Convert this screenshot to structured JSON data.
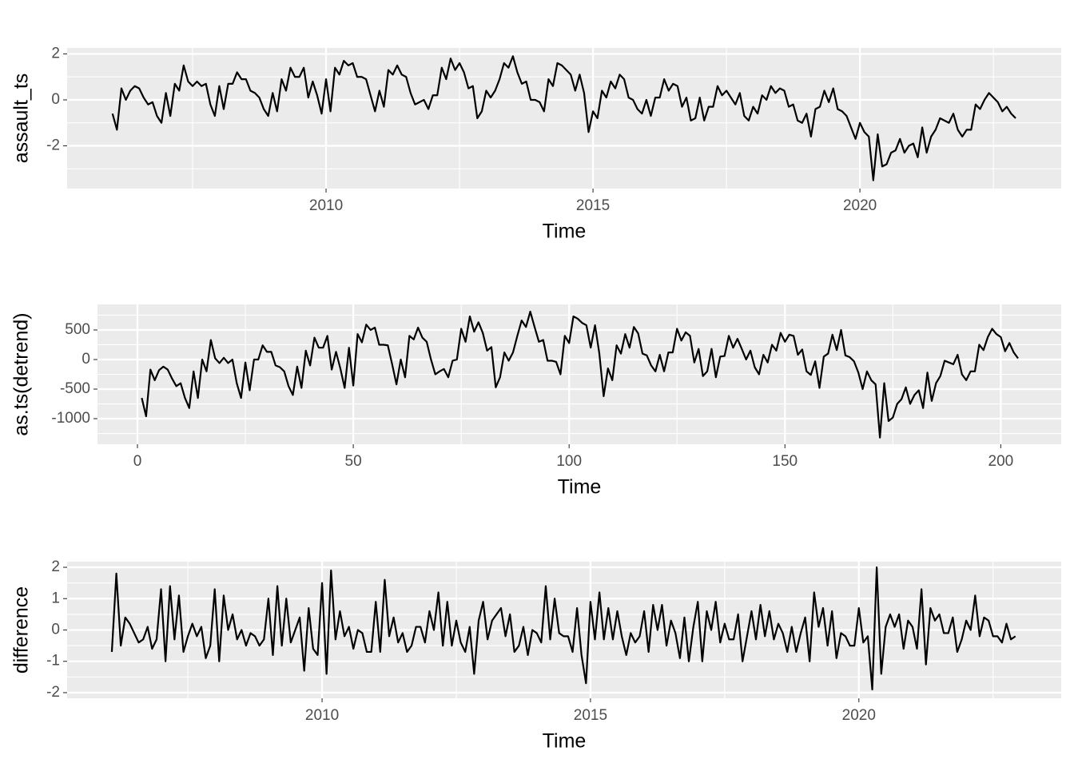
{
  "chart_data": [
    {
      "type": "line",
      "x_label": "Time",
      "y_label": "assault_ts",
      "color": "#000000",
      "grid": true,
      "xlim": [
        2005.15,
        2023.77
      ],
      "ylim": [
        -3.86,
        2.26
      ],
      "xticks": [
        2010,
        2015,
        2020
      ],
      "yticks": [
        -2,
        0,
        2
      ],
      "x": [
        2006,
        2006.083,
        2006.167,
        2006.25,
        2006.333,
        2006.417,
        2006.5,
        2006.583,
        2006.667,
        2006.75,
        2006.833,
        2006.917,
        2007,
        2007.083,
        2007.167,
        2007.25,
        2007.333,
        2007.417,
        2007.5,
        2007.583,
        2007.667,
        2007.75,
        2007.833,
        2007.917,
        2008,
        2008.083,
        2008.167,
        2008.25,
        2008.333,
        2008.417,
        2008.5,
        2008.583,
        2008.667,
        2008.75,
        2008.833,
        2008.917,
        2009,
        2009.083,
        2009.167,
        2009.25,
        2009.333,
        2009.417,
        2009.5,
        2009.583,
        2009.667,
        2009.75,
        2009.833,
        2009.917,
        2010,
        2010.083,
        2010.167,
        2010.25,
        2010.333,
        2010.417,
        2010.5,
        2010.583,
        2010.667,
        2010.75,
        2010.833,
        2010.917,
        2011,
        2011.083,
        2011.167,
        2011.25,
        2011.333,
        2011.417,
        2011.5,
        2011.583,
        2011.667,
        2011.75,
        2011.833,
        2011.917,
        2012,
        2012.083,
        2012.167,
        2012.25,
        2012.333,
        2012.417,
        2012.5,
        2012.583,
        2012.667,
        2012.75,
        2012.833,
        2012.917,
        2013,
        2013.083,
        2013.167,
        2013.25,
        2013.333,
        2013.417,
        2013.5,
        2013.583,
        2013.667,
        2013.75,
        2013.833,
        2013.917,
        2014,
        2014.083,
        2014.167,
        2014.25,
        2014.333,
        2014.417,
        2014.5,
        2014.583,
        2014.667,
        2014.75,
        2014.833,
        2014.917,
        2015,
        2015.083,
        2015.167,
        2015.25,
        2015.333,
        2015.417,
        2015.5,
        2015.583,
        2015.667,
        2015.75,
        2015.833,
        2015.917,
        2016,
        2016.083,
        2016.167,
        2016.25,
        2016.333,
        2016.417,
        2016.5,
        2016.583,
        2016.667,
        2016.75,
        2016.833,
        2016.917,
        2017,
        2017.083,
        2017.167,
        2017.25,
        2017.333,
        2017.417,
        2017.5,
        2017.583,
        2017.667,
        2017.75,
        2017.833,
        2017.917,
        2018,
        2018.083,
        2018.167,
        2018.25,
        2018.333,
        2018.417,
        2018.5,
        2018.583,
        2018.667,
        2018.75,
        2018.833,
        2018.917,
        2019,
        2019.083,
        2019.167,
        2019.25,
        2019.333,
        2019.417,
        2019.5,
        2019.583,
        2019.667,
        2019.75,
        2019.833,
        2019.917,
        2020,
        2020.083,
        2020.167,
        2020.25,
        2020.333,
        2020.417,
        2020.5,
        2020.583,
        2020.667,
        2020.75,
        2020.833,
        2020.917,
        2021,
        2021.083,
        2021.167,
        2021.25,
        2021.333,
        2021.417,
        2021.5,
        2021.583,
        2021.667,
        2021.75,
        2021.833,
        2021.917,
        2022,
        2022.083,
        2022.167,
        2022.25,
        2022.333,
        2022.417,
        2022.5,
        2022.583,
        2022.667,
        2022.75,
        2022.833,
        2022.917
      ],
      "values": [
        -0.6,
        -1.3,
        0.5,
        0.0,
        0.4,
        0.6,
        0.5,
        0.1,
        -0.2,
        -0.1,
        -0.7,
        -1.0,
        0.3,
        -0.7,
        0.7,
        0.4,
        1.5,
        0.8,
        0.6,
        0.8,
        0.6,
        0.7,
        -0.2,
        -0.7,
        0.6,
        -0.4,
        0.7,
        0.7,
        1.2,
        0.9,
        0.9,
        0.4,
        0.3,
        0.1,
        -0.4,
        -0.7,
        0.3,
        -0.5,
        0.9,
        0.4,
        1.4,
        1.0,
        1.0,
        1.4,
        0.1,
        0.8,
        0.2,
        -0.6,
        0.9,
        -0.5,
        1.4,
        1.1,
        1.7,
        1.5,
        1.6,
        1.0,
        1.0,
        0.9,
        0.2,
        -0.5,
        0.4,
        -0.3,
        1.3,
        1.1,
        1.5,
        1.1,
        1.0,
        0.3,
        -0.2,
        -0.1,
        0.0,
        -0.4,
        0.2,
        0.2,
        1.4,
        0.9,
        1.8,
        1.3,
        1.6,
        1.2,
        0.5,
        0.6,
        -0.8,
        -0.5,
        0.4,
        0.1,
        0.4,
        0.9,
        1.6,
        1.4,
        1.9,
        1.2,
        0.7,
        0.8,
        0.0,
        0.0,
        -0.1,
        -0.5,
        0.9,
        0.6,
        1.6,
        1.5,
        1.3,
        1.1,
        0.4,
        1.1,
        0.3,
        -1.4,
        -0.5,
        -0.8,
        0.4,
        0.1,
        0.8,
        0.5,
        1.1,
        0.9,
        0.1,
        0.0,
        -0.4,
        -0.6,
        0.0,
        -0.7,
        0.1,
        0.1,
        0.9,
        0.4,
        0.7,
        0.6,
        -0.3,
        0.1,
        -0.9,
        -0.8,
        0.1,
        -0.9,
        -0.3,
        -0.3,
        0.6,
        0.2,
        0.4,
        0.1,
        -0.2,
        0.3,
        -0.7,
        -0.9,
        -0.3,
        -0.6,
        0.2,
        0.0,
        0.6,
        0.3,
        0.5,
        0.4,
        -0.3,
        -0.2,
        -0.9,
        -1.0,
        -0.6,
        -1.6,
        -0.4,
        -0.3,
        0.4,
        -0.1,
        0.5,
        -0.4,
        -0.5,
        -0.7,
        -1.2,
        -1.7,
        -1.0,
        -1.4,
        -1.6,
        -3.5,
        -1.5,
        -2.9,
        -2.8,
        -2.3,
        -2.2,
        -1.7,
        -2.3,
        -2.0,
        -1.9,
        -2.5,
        -1.2,
        -2.3,
        -1.6,
        -1.3,
        -0.8,
        -0.9,
        -1.0,
        -0.6,
        -1.3,
        -1.6,
        -1.3,
        -1.3,
        -0.2,
        -0.4,
        0.0,
        0.3,
        0.1,
        -0.1,
        -0.5,
        -0.3,
        -0.6,
        -0.8
      ]
    },
    {
      "type": "line",
      "x_label": "Time",
      "y_label": "as.ts(detrend)",
      "color": "#000000",
      "grid": true,
      "xlim": [
        -9.26,
        214
      ],
      "ylim": [
        -1432,
        932
      ],
      "xticks": [
        0,
        50,
        100,
        150,
        200
      ],
      "yticks": [
        -1000,
        -500,
        0,
        500
      ],
      "x": [
        1,
        2,
        3,
        4,
        5,
        6,
        7,
        8,
        9,
        10,
        11,
        12,
        13,
        14,
        15,
        16,
        17,
        18,
        19,
        20,
        21,
        22,
        23,
        24,
        25,
        26,
        27,
        28,
        29,
        30,
        31,
        32,
        33,
        34,
        35,
        36,
        37,
        38,
        39,
        40,
        41,
        42,
        43,
        44,
        45,
        46,
        47,
        48,
        49,
        50,
        51,
        52,
        53,
        54,
        55,
        56,
        57,
        58,
        59,
        60,
        61,
        62,
        63,
        64,
        65,
        66,
        67,
        68,
        69,
        70,
        71,
        72,
        73,
        74,
        75,
        76,
        77,
        78,
        79,
        80,
        81,
        82,
        83,
        84,
        85,
        86,
        87,
        88,
        89,
        90,
        91,
        92,
        93,
        94,
        95,
        96,
        97,
        98,
        99,
        100,
        101,
        102,
        103,
        104,
        105,
        106,
        107,
        108,
        109,
        110,
        111,
        112,
        113,
        114,
        115,
        116,
        117,
        118,
        119,
        120,
        121,
        122,
        123,
        124,
        125,
        126,
        127,
        128,
        129,
        130,
        131,
        132,
        133,
        134,
        135,
        136,
        137,
        138,
        139,
        140,
        141,
        142,
        143,
        144,
        145,
        146,
        147,
        148,
        149,
        150,
        151,
        152,
        153,
        154,
        155,
        156,
        157,
        158,
        159,
        160,
        161,
        162,
        163,
        164,
        165,
        166,
        167,
        168,
        169,
        170,
        171,
        172,
        173,
        174,
        175,
        176,
        177,
        178,
        179,
        180,
        181,
        182,
        183,
        184,
        185,
        186,
        187,
        188,
        189,
        190,
        191,
        192,
        193,
        194,
        195,
        196,
        197,
        198,
        199,
        200,
        201,
        202,
        203,
        204
      ],
      "values": [
        -650,
        -960,
        -170,
        -350,
        -180,
        -120,
        -170,
        -320,
        -450,
        -400,
        -650,
        -820,
        -200,
        -650,
        0,
        -200,
        330,
        20,
        -60,
        30,
        -60,
        0,
        -400,
        -650,
        -50,
        -520,
        0,
        0,
        240,
        130,
        130,
        -100,
        -130,
        -200,
        -450,
        -600,
        -120,
        -480,
        150,
        -100,
        370,
        200,
        200,
        400,
        -170,
        130,
        -150,
        -480,
        200,
        -440,
        430,
        290,
        590,
        500,
        540,
        250,
        250,
        240,
        -80,
        -420,
        0,
        -300,
        400,
        340,
        540,
        370,
        300,
        0,
        -250,
        -200,
        -160,
        -300,
        -20,
        0,
        520,
        300,
        730,
        470,
        630,
        450,
        150,
        210,
        -470,
        -300,
        120,
        -20,
        120,
        400,
        660,
        550,
        810,
        550,
        300,
        330,
        -20,
        -20,
        -40,
        -250,
        400,
        280,
        730,
        690,
        620,
        580,
        200,
        580,
        100,
        -620,
        -150,
        -350,
        240,
        100,
        430,
        200,
        550,
        440,
        100,
        70,
        -100,
        -200,
        80,
        -200,
        120,
        120,
        520,
        320,
        460,
        400,
        -50,
        180,
        -280,
        -200,
        180,
        -300,
        50,
        60,
        400,
        200,
        350,
        180,
        0,
        150,
        -130,
        -250,
        80,
        -50,
        250,
        150,
        450,
        300,
        420,
        400,
        80,
        170,
        -200,
        -260,
        -30,
        -480,
        50,
        100,
        420,
        160,
        500,
        70,
        40,
        -30,
        -220,
        -500,
        -200,
        -350,
        -420,
        -1320,
        -400,
        -1040,
        -980,
        -750,
        -670,
        -470,
        -750,
        -600,
        -520,
        -820,
        -220,
        -700,
        -400,
        -280,
        -20,
        -50,
        -80,
        80,
        -250,
        -350,
        -200,
        -200,
        250,
        160,
        380,
        520,
        430,
        380,
        140,
        280,
        120,
        20
      ]
    },
    {
      "type": "line",
      "x_label": "Time",
      "y_label": "difference",
      "color": "#000000",
      "grid": true,
      "xlim": [
        2005.25,
        2023.77
      ],
      "ylim": [
        -2.18,
        2.18
      ],
      "xticks": [
        2010,
        2015,
        2020
      ],
      "yticks": [
        -2,
        -1,
        0,
        1,
        2
      ],
      "x": [
        2006.083,
        2006.167,
        2006.25,
        2006.333,
        2006.417,
        2006.5,
        2006.583,
        2006.667,
        2006.75,
        2006.833,
        2006.917,
        2007,
        2007.083,
        2007.167,
        2007.25,
        2007.333,
        2007.417,
        2007.5,
        2007.583,
        2007.667,
        2007.75,
        2007.833,
        2007.917,
        2008,
        2008.083,
        2008.167,
        2008.25,
        2008.333,
        2008.417,
        2008.5,
        2008.583,
        2008.667,
        2008.75,
        2008.833,
        2008.917,
        2009,
        2009.083,
        2009.167,
        2009.25,
        2009.333,
        2009.417,
        2009.5,
        2009.583,
        2009.667,
        2009.75,
        2009.833,
        2009.917,
        2010,
        2010.083,
        2010.167,
        2010.25,
        2010.333,
        2010.417,
        2010.5,
        2010.583,
        2010.667,
        2010.75,
        2010.833,
        2010.917,
        2011,
        2011.083,
        2011.167,
        2011.25,
        2011.333,
        2011.417,
        2011.5,
        2011.583,
        2011.667,
        2011.75,
        2011.833,
        2011.917,
        2012,
        2012.083,
        2012.167,
        2012.25,
        2012.333,
        2012.417,
        2012.5,
        2012.583,
        2012.667,
        2012.75,
        2012.833,
        2012.917,
        2013,
        2013.083,
        2013.167,
        2013.25,
        2013.333,
        2013.417,
        2013.5,
        2013.583,
        2013.667,
        2013.75,
        2013.833,
        2013.917,
        2014,
        2014.083,
        2014.167,
        2014.25,
        2014.333,
        2014.417,
        2014.5,
        2014.583,
        2014.667,
        2014.75,
        2014.833,
        2014.917,
        2015,
        2015.083,
        2015.167,
        2015.25,
        2015.333,
        2015.417,
        2015.5,
        2015.583,
        2015.667,
        2015.75,
        2015.833,
        2015.917,
        2016,
        2016.083,
        2016.167,
        2016.25,
        2016.333,
        2016.417,
        2016.5,
        2016.583,
        2016.667,
        2016.75,
        2016.833,
        2016.917,
        2017,
        2017.083,
        2017.167,
        2017.25,
        2017.333,
        2017.417,
        2017.5,
        2017.583,
        2017.667,
        2017.75,
        2017.833,
        2017.917,
        2018,
        2018.083,
        2018.167,
        2018.25,
        2018.333,
        2018.417,
        2018.5,
        2018.583,
        2018.667,
        2018.75,
        2018.833,
        2018.917,
        2019,
        2019.083,
        2019.167,
        2019.25,
        2019.333,
        2019.417,
        2019.5,
        2019.583,
        2019.667,
        2019.75,
        2019.833,
        2019.917,
        2020,
        2020.083,
        2020.167,
        2020.25,
        2020.333,
        2020.417,
        2020.5,
        2020.583,
        2020.667,
        2020.75,
        2020.833,
        2020.917,
        2021,
        2021.083,
        2021.167,
        2021.25,
        2021.333,
        2021.417,
        2021.5,
        2021.583,
        2021.667,
        2021.75,
        2021.833,
        2021.917,
        2022,
        2022.083,
        2022.167,
        2022.25,
        2022.333,
        2022.417,
        2022.5,
        2022.583,
        2022.667,
        2022.75,
        2022.833,
        2022.917
      ],
      "values": [
        -0.7,
        1.8,
        -0.5,
        0.4,
        0.2,
        -0.1,
        -0.4,
        -0.3,
        0.1,
        -0.6,
        -0.3,
        1.3,
        -1.0,
        1.4,
        -0.3,
        1.1,
        -0.7,
        -0.2,
        0.2,
        -0.2,
        0.1,
        -0.9,
        -0.5,
        1.3,
        -1.0,
        1.1,
        0.0,
        0.5,
        -0.3,
        0.0,
        -0.5,
        -0.1,
        -0.2,
        -0.5,
        -0.3,
        1.0,
        -0.8,
        1.4,
        -0.5,
        1.0,
        -0.4,
        0.0,
        0.4,
        -1.3,
        0.7,
        -0.6,
        -0.8,
        1.5,
        -1.4,
        1.9,
        -0.3,
        0.6,
        -0.2,
        0.1,
        -0.6,
        0.0,
        -0.1,
        -0.7,
        -0.7,
        0.9,
        -0.7,
        1.6,
        -0.2,
        0.4,
        -0.4,
        -0.1,
        -0.7,
        -0.5,
        0.1,
        0.1,
        -0.4,
        0.6,
        0.0,
        1.2,
        -0.5,
        0.9,
        -0.5,
        0.3,
        -0.4,
        -0.7,
        0.1,
        -1.4,
        0.3,
        0.9,
        -0.3,
        0.3,
        0.5,
        0.7,
        -0.2,
        0.5,
        -0.7,
        -0.5,
        0.1,
        -0.8,
        0.0,
        -0.1,
        -0.4,
        1.4,
        -0.3,
        1.0,
        -0.1,
        -0.2,
        -0.2,
        -0.7,
        0.7,
        -0.8,
        -1.7,
        0.9,
        -0.3,
        1.2,
        -0.3,
        0.7,
        -0.3,
        0.6,
        -0.2,
        -0.8,
        -0.1,
        -0.4,
        -0.2,
        0.6,
        -0.7,
        0.8,
        0.0,
        0.8,
        -0.5,
        0.3,
        -0.1,
        -0.9,
        0.4,
        -1.0,
        0.1,
        0.9,
        -1.0,
        0.6,
        0.0,
        0.9,
        -0.4,
        0.2,
        -0.3,
        -0.3,
        0.5,
        -1.0,
        -0.2,
        0.6,
        -0.3,
        0.8,
        -0.2,
        0.6,
        -0.3,
        0.2,
        -0.1,
        -0.7,
        0.1,
        -0.7,
        -0.1,
        0.4,
        -1.0,
        1.2,
        0.1,
        0.7,
        -0.5,
        0.6,
        -0.9,
        -0.1,
        -0.2,
        -0.5,
        -0.5,
        0.7,
        -0.4,
        -0.2,
        -1.9,
        2.0,
        -1.4,
        0.1,
        0.5,
        0.1,
        0.5,
        -0.6,
        0.3,
        0.1,
        -0.6,
        1.3,
        -1.1,
        0.7,
        0.3,
        0.5,
        -0.1,
        -0.1,
        0.4,
        -0.7,
        -0.3,
        0.3,
        0.0,
        1.1,
        -0.2,
        0.4,
        0.3,
        -0.2,
        -0.2,
        -0.4,
        0.2,
        -0.3,
        -0.2
      ]
    }
  ]
}
